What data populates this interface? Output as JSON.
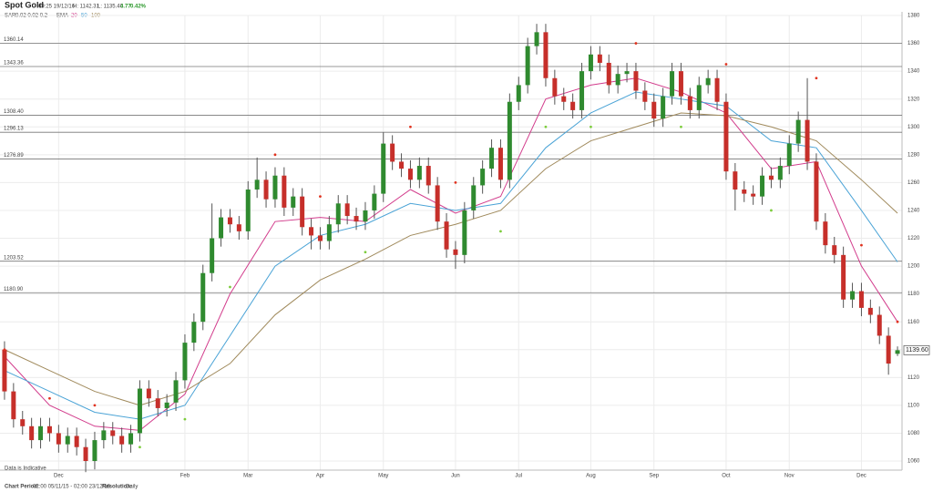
{
  "chart_data": {
    "type": "candlestick",
    "title": "Spot Gold",
    "header": {
      "time": "09:25 19/12/16",
      "high": "H: 1142.31",
      "low": "L: 1135.40",
      "change": "4.77",
      "change_pct": "0.42%"
    },
    "indicators": {
      "sar": "SAR",
      "sar_params": "0.02 0.02 0.2",
      "ema": "EMA",
      "ema_periods": [
        "20",
        "50",
        "100"
      ]
    },
    "footer": {
      "period_label": "Chart Period:",
      "period": "02:00 05/11/15 - 02:00 23/12/16",
      "resolution_label": "Resolution:",
      "resolution": "Daily",
      "note": "Data is Indicative"
    },
    "last_price": {
      "value": 1139.6,
      "label": "1139.60"
    },
    "colors": {
      "up": "#2f8a2f",
      "down": "#c62f2a",
      "sar_up": "#7ccc3c",
      "sar_down": "#e0321e"
    },
    "categories": [
      null,
      null,
      null,
      null,
      null,
      null,
      null,
      null,
      null,
      null,
      null,
      null,
      null,
      null,
      null,
      null,
      null,
      null,
      null,
      null,
      null,
      null,
      null,
      null,
      null,
      null,
      null,
      null,
      null,
      null,
      null,
      null,
      null,
      null,
      null,
      null,
      null,
      null,
      null,
      null,
      null,
      null,
      null,
      null,
      null,
      null,
      null,
      null,
      null,
      null,
      null,
      null,
      null,
      null,
      null,
      null,
      null,
      null,
      null,
      null,
      null,
      null,
      null,
      null,
      null,
      null,
      null,
      null,
      null,
      null,
      null,
      null,
      null,
      null,
      null,
      null,
      null,
      null,
      null,
      null,
      null,
      null,
      null,
      null,
      null,
      null,
      null,
      null,
      null,
      null,
      null,
      null,
      null,
      null,
      null,
      null,
      null,
      null,
      null,
      null
    ],
    "open": [
      1140,
      1110,
      1090,
      1085,
      1075,
      1085,
      1080,
      1072,
      1078,
      1070,
      1060,
      1075,
      1082,
      1078,
      1072,
      1080,
      1112,
      1105,
      1098,
      1102,
      1118,
      1145,
      1160,
      1195,
      1220,
      1235,
      1230,
      1225,
      1255,
      1262,
      1248,
      1265,
      1242,
      1250,
      1228,
      1222,
      1218,
      1230,
      1245,
      1236,
      1232,
      1240,
      1252,
      1288,
      1275,
      1270,
      1262,
      1272,
      1258,
      1232,
      1212,
      1208,
      1240,
      1258,
      1270,
      1285,
      1262,
      1318,
      1330,
      1358,
      1368,
      1335,
      1322,
      1318,
      1312,
      1340,
      1352,
      1346,
      1330,
      1338,
      1340,
      1326,
      1318,
      1306,
      1322,
      1340,
      1322,
      1312,
      1330,
      1335,
      1318,
      1268,
      1255,
      1252,
      1250,
      1265,
      1262,
      1272,
      1288,
      1305,
      1275,
      1232,
      1215,
      1208,
      1176,
      1182,
      1170,
      1165,
      1150,
      1137
    ],
    "high": [
      1146,
      1116,
      1096,
      1091,
      1091,
      1091,
      1086,
      1084,
      1084,
      1076,
      1081,
      1088,
      1088,
      1084,
      1086,
      1118,
      1118,
      1111,
      1108,
      1124,
      1151,
      1166,
      1201,
      1245,
      1241,
      1241,
      1236,
      1261,
      1278,
      1268,
      1271,
      1271,
      1256,
      1256,
      1234,
      1228,
      1236,
      1251,
      1251,
      1242,
      1246,
      1258,
      1296,
      1294,
      1281,
      1276,
      1278,
      1278,
      1264,
      1238,
      1218,
      1246,
      1264,
      1276,
      1291,
      1291,
      1324,
      1336,
      1364,
      1374,
      1374,
      1341,
      1328,
      1324,
      1346,
      1358,
      1358,
      1352,
      1344,
      1346,
      1346,
      1332,
      1324,
      1328,
      1346,
      1346,
      1328,
      1336,
      1341,
      1341,
      1324,
      1274,
      1261,
      1258,
      1271,
      1271,
      1278,
      1294,
      1311,
      1335,
      1281,
      1238,
      1221,
      1214,
      1188,
      1188,
      1176,
      1171,
      1156,
      1142.31
    ],
    "low": [
      1104,
      1084,
      1079,
      1069,
      1069,
      1074,
      1066,
      1066,
      1064,
      1052,
      1054,
      1069,
      1072,
      1066,
      1066,
      1074,
      1099,
      1092,
      1092,
      1096,
      1112,
      1139,
      1154,
      1189,
      1214,
      1224,
      1219,
      1219,
      1249,
      1242,
      1242,
      1236,
      1236,
      1222,
      1212,
      1212,
      1212,
      1224,
      1230,
      1226,
      1226,
      1234,
      1246,
      1269,
      1264,
      1256,
      1256,
      1252,
      1226,
      1206,
      1198,
      1202,
      1234,
      1252,
      1264,
      1256,
      1256,
      1312,
      1324,
      1352,
      1329,
      1316,
      1312,
      1306,
      1306,
      1334,
      1340,
      1324,
      1324,
      1332,
      1320,
      1312,
      1300,
      1300,
      1316,
      1316,
      1306,
      1306,
      1324,
      1312,
      1262,
      1240,
      1246,
      1244,
      1244,
      1256,
      1256,
      1266,
      1282,
      1269,
      1226,
      1209,
      1202,
      1170,
      1170,
      1164,
      1159,
      1144,
      1122,
      1135.4
    ],
    "close": [
      1110,
      1090,
      1085,
      1075,
      1085,
      1080,
      1072,
      1078,
      1070,
      1060,
      1075,
      1082,
      1078,
      1072,
      1080,
      1112,
      1105,
      1098,
      1102,
      1118,
      1145,
      1160,
      1195,
      1220,
      1235,
      1230,
      1225,
      1255,
      1262,
      1248,
      1265,
      1242,
      1250,
      1228,
      1222,
      1218,
      1230,
      1245,
      1236,
      1232,
      1240,
      1252,
      1288,
      1275,
      1270,
      1262,
      1272,
      1258,
      1232,
      1212,
      1208,
      1240,
      1258,
      1270,
      1285,
      1262,
      1318,
      1330,
      1358,
      1368,
      1335,
      1322,
      1318,
      1312,
      1340,
      1352,
      1346,
      1330,
      1338,
      1340,
      1326,
      1318,
      1306,
      1322,
      1340,
      1322,
      1312,
      1330,
      1335,
      1318,
      1268,
      1255,
      1252,
      1250,
      1265,
      1262,
      1272,
      1288,
      1305,
      1275,
      1232,
      1215,
      1208,
      1176,
      1182,
      1170,
      1165,
      1150,
      1130,
      1139.6
    ],
    "x": [
      0,
      5,
      10,
      15,
      20,
      25,
      30,
      35,
      40,
      45,
      50,
      55,
      60,
      65,
      70,
      75,
      80,
      85,
      90,
      95,
      99
    ],
    "series": [
      {
        "name": "20",
        "color": "#d23c8c",
        "values": [
          1135,
          1100,
          1085,
          1082,
          1108,
          1180,
          1232,
          1235,
          1232,
          1255,
          1238,
          1250,
          1320,
          1330,
          1335,
          1325,
          1310,
          1270,
          1275,
          1200,
          1160
        ]
      },
      {
        "name": "50",
        "color": "#4aa3d6",
        "values": [
          1125,
          1110,
          1095,
          1090,
          1100,
          1150,
          1200,
          1222,
          1230,
          1245,
          1240,
          1245,
          1285,
          1310,
          1325,
          1320,
          1315,
          1290,
          1285,
          1240,
          1203
        ]
      },
      {
        "name": "100",
        "color": "#a08a5c",
        "values": [
          1140,
          1125,
          1110,
          1100,
          1110,
          1130,
          1165,
          1190,
          1205,
          1222,
          1230,
          1240,
          1270,
          1290,
          1300,
          1310,
          1308,
          1300,
          1290,
          1262,
          1238
        ]
      }
    ],
    "sar": [
      1140,
      1105,
      1100,
      1070,
      1090,
      1185,
      1280,
      1250,
      1210,
      1300,
      1260,
      1225,
      1300,
      1300,
      1360,
      1300,
      1345,
      1240,
      1335,
      1215,
      1160
    ],
    "levels": [
      {
        "value": 1360.14,
        "label": "1360.14"
      },
      {
        "value": 1343.36,
        "label": "1343.36"
      },
      {
        "value": 1308.4,
        "label": "1308.40"
      },
      {
        "value": 1296.13,
        "label": "1296.13"
      },
      {
        "value": 1276.89,
        "label": "1276.89"
      },
      {
        "value": 1203.52,
        "label": "1203.52"
      },
      {
        "value": 1180.9,
        "label": "1180.90"
      }
    ],
    "xlim": [
      -0.5,
      99.5
    ],
    "xticks": [
      {
        "value": 6,
        "label": "Dec"
      },
      {
        "value": 20,
        "label": "Feb"
      },
      {
        "value": 27,
        "label": "Mar"
      },
      {
        "value": 35,
        "label": "Apr"
      },
      {
        "value": 42,
        "label": "May"
      },
      {
        "value": 50,
        "label": "Jun"
      },
      {
        "value": 57,
        "label": "Jul"
      },
      {
        "value": 65,
        "label": "Aug"
      },
      {
        "value": 72,
        "label": "Sep"
      },
      {
        "value": 80,
        "label": "Oct"
      },
      {
        "value": 87,
        "label": "Nov"
      },
      {
        "value": 95,
        "label": "Dec"
      }
    ],
    "ylim": [
      1060,
      1380
    ],
    "yticks": [
      1060,
      1080,
      1100,
      1120,
      1140,
      1160,
      1180,
      1200,
      1220,
      1240,
      1260,
      1280,
      1300,
      1320,
      1340,
      1360,
      1380
    ],
    "grid": true
  }
}
